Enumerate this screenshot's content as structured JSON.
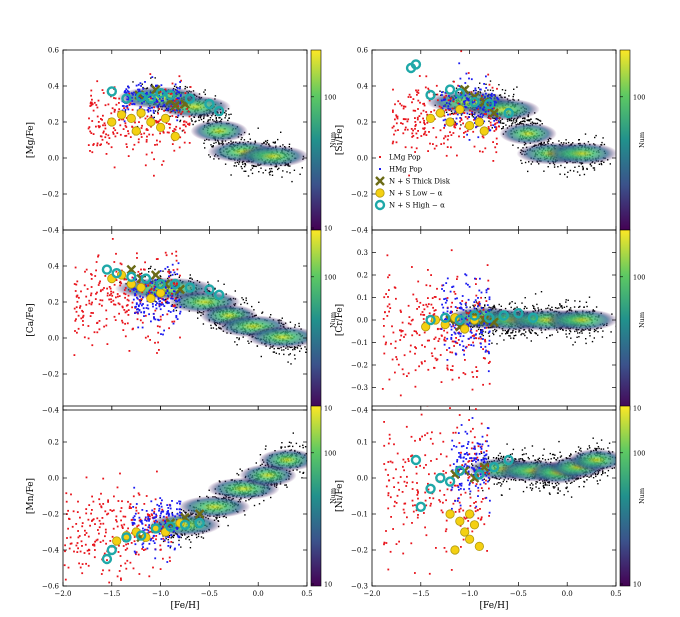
{
  "figure": {
    "colorbar_label": "Num",
    "xlabel": "[Fe/H]",
    "legend": [
      "LMg Pop",
      "HMg Pop",
      "N + S Thick Disk",
      "N + S Low − α",
      "N + S High − α"
    ],
    "colors": {
      "lmg": "#e8141c",
      "hmg": "#1b1bf0",
      "thick_disk": "#6b6b17",
      "low_alpha_fill": "#f4d012",
      "low_alpha_edge": "#b09a10",
      "high_alpha": "#1fa8a8",
      "background": "#000000",
      "viridis": [
        "#440154",
        "#3b528b",
        "#21918c",
        "#5ec962",
        "#fde725"
      ]
    }
  },
  "chart_data": [
    {
      "type": "scatter",
      "panel": "top-left",
      "ylabel": "[Mg/Fe]",
      "xlim": [
        -2.0,
        0.5
      ],
      "ylim": [
        -0.4,
        0.6
      ],
      "yticks": [
        "−0.4",
        "−0.2",
        "0.0",
        "0.2",
        "0.4",
        "0.6"
      ],
      "xticks": [],
      "colorbar": {
        "ticks": [
          "10",
          "100"
        ],
        "label": "Num"
      },
      "density_track": [
        [
          -1.2,
          0.35
        ],
        [
          -0.8,
          0.32
        ],
        [
          -0.5,
          0.25
        ],
        [
          -0.3,
          0.05
        ],
        [
          0.0,
          0.02
        ],
        [
          0.3,
          0.0
        ]
      ],
      "series": [
        {
          "name": "LMg Pop",
          "x_range": [
            -1.75,
            -0.7
          ],
          "y_center": 0.2,
          "y_spread": 0.1
        },
        {
          "name": "HMg Pop",
          "x_range": [
            -1.4,
            -0.8
          ],
          "y_center": 0.33,
          "y_spread": 0.05
        },
        {
          "name": "N + S Thick Disk",
          "x": [
            -1.22,
            -1.05,
            -0.9,
            -0.85,
            -0.75
          ],
          "y": [
            0.35,
            0.38,
            0.32,
            0.29,
            0.3
          ]
        },
        {
          "name": "N + S Low − α",
          "x": [
            -1.5,
            -1.4,
            -1.3,
            -1.25,
            -1.2,
            -1.1,
            -1.0,
            -0.95,
            -0.85
          ],
          "y": [
            0.2,
            0.24,
            0.22,
            0.15,
            0.25,
            0.2,
            0.17,
            0.22,
            0.12
          ]
        },
        {
          "name": "N + S High − α",
          "x": [
            -1.5,
            -1.35,
            -1.2,
            -1.1,
            -1.0,
            -0.9,
            -0.7,
            -0.5,
            -0.4
          ],
          "y": [
            0.37,
            0.33,
            0.34,
            0.33,
            0.36,
            0.35,
            0.33,
            0.3,
            0.26
          ]
        }
      ]
    },
    {
      "type": "scatter",
      "panel": "top-right",
      "ylabel": "[Si/Fe]",
      "xlim": [
        -2.0,
        0.5
      ],
      "ylim": [
        -0.4,
        0.6
      ],
      "yticks": [
        "−0.4",
        "−0.2",
        "0.0",
        "0.2",
        "0.4",
        "0.6"
      ],
      "xticks": [],
      "colorbar": {
        "ticks": [
          "100"
        ],
        "label": "Num"
      },
      "density_track": [
        [
          -1.2,
          0.3
        ],
        [
          -0.8,
          0.32
        ],
        [
          -0.5,
          0.22
        ],
        [
          -0.3,
          0.05
        ],
        [
          0.0,
          0.0
        ],
        [
          0.3,
          0.05
        ]
      ],
      "series": [
        {
          "name": "LMg Pop",
          "x_range": [
            -1.8,
            -0.7
          ],
          "y_center": 0.22,
          "y_spread": 0.1
        },
        {
          "name": "HMg Pop",
          "x_range": [
            -1.3,
            -0.7
          ],
          "y_center": 0.3,
          "y_spread": 0.07
        },
        {
          "name": "N + S Thick Disk",
          "x": [
            -1.05,
            -0.95,
            -0.85,
            -0.75
          ],
          "y": [
            0.38,
            0.34,
            0.31,
            0.25
          ]
        },
        {
          "name": "N + S Low − α",
          "x": [
            -1.4,
            -1.3,
            -1.2,
            -1.1,
            -1.0,
            -0.9,
            -0.85
          ],
          "y": [
            0.22,
            0.25,
            0.2,
            0.27,
            0.18,
            0.2,
            0.15
          ]
        },
        {
          "name": "N + S High − α",
          "x": [
            -1.6,
            -1.55,
            -1.4,
            -1.2,
            -1.1,
            -0.95,
            -0.8,
            -0.6
          ],
          "y": [
            0.5,
            0.52,
            0.35,
            0.38,
            0.36,
            0.31,
            0.3,
            0.25
          ]
        }
      ]
    },
    {
      "type": "scatter",
      "panel": "middle-left",
      "ylabel": "[Ca/Fe]",
      "xlim": [
        -2.0,
        0.5
      ],
      "ylim": [
        -0.4,
        0.6
      ],
      "yticks": [
        "−0.4",
        "−0.2",
        "0.0",
        "0.2",
        "0.4"
      ],
      "xticks": [],
      "colorbar": {
        "ticks": [
          "10",
          "100"
        ],
        "label": "Num"
      },
      "density_track": [
        [
          -1.2,
          0.3
        ],
        [
          -0.7,
          0.25
        ],
        [
          -0.4,
          0.15
        ],
        [
          -0.2,
          0.1
        ],
        [
          0.1,
          0.03
        ],
        [
          0.4,
          -0.02
        ]
      ],
      "series": [
        {
          "name": "LMg Pop",
          "x_range": [
            -1.9,
            -0.8
          ],
          "y_center": 0.22,
          "y_spread": 0.12
        },
        {
          "name": "HMg Pop",
          "x_range": [
            -1.3,
            -0.8
          ],
          "y_center": 0.22,
          "y_spread": 0.08
        },
        {
          "name": "N + S Thick Disk",
          "x": [
            -1.3,
            -1.2,
            -1.05,
            -0.95,
            -0.8
          ],
          "y": [
            0.38,
            0.33,
            0.35,
            0.3,
            0.27
          ]
        },
        {
          "name": "N + S Low − α",
          "x": [
            -1.5,
            -1.4,
            -1.3,
            -1.2,
            -1.1,
            -1.0
          ],
          "y": [
            0.33,
            0.35,
            0.3,
            0.28,
            0.22,
            0.25
          ]
        },
        {
          "name": "N + S High − α",
          "x": [
            -1.55,
            -1.45,
            -1.3,
            -1.15,
            -1.0,
            -0.85,
            -0.7,
            -0.5,
            -0.4
          ],
          "y": [
            0.38,
            0.36,
            0.34,
            0.33,
            0.3,
            0.3,
            0.28,
            0.27,
            0.24
          ]
        }
      ]
    },
    {
      "type": "scatter",
      "panel": "middle-right",
      "ylabel": "[Cr/Fe]",
      "xlim": [
        -2.0,
        0.5
      ],
      "ylim": [
        -0.4,
        0.4
      ],
      "yticks": [
        "−0.4",
        "−0.3",
        "−0.2",
        "−0.1",
        "0.0",
        "0.1",
        "0.2",
        "0.3"
      ],
      "xticks": [],
      "colorbar": {
        "ticks": [
          "10",
          "100"
        ],
        "label": "Num"
      },
      "density_track": [
        [
          -1.0,
          0.02
        ],
        [
          -0.7,
          0.0
        ],
        [
          -0.4,
          0.0
        ],
        [
          0.0,
          0.0
        ],
        [
          0.3,
          0.0
        ]
      ],
      "series": [
        {
          "name": "LMg Pop",
          "x_range": [
            -1.9,
            -0.8
          ],
          "y_center": -0.03,
          "y_spread": 0.12
        },
        {
          "name": "HMg Pop",
          "x_range": [
            -1.3,
            -0.8
          ],
          "y_center": 0.0,
          "y_spread": 0.08
        },
        {
          "name": "N + S Thick Disk",
          "x": [
            -1.2,
            -1.1,
            -0.95,
            -0.85,
            -0.75
          ],
          "y": [
            0.0,
            -0.03,
            0.02,
            0.0,
            -0.01
          ]
        },
        {
          "name": "N + S Low − α",
          "x": [
            -1.45,
            -1.35,
            -1.25,
            -1.15,
            -1.05,
            -0.95
          ],
          "y": [
            -0.03,
            0.0,
            -0.02,
            0.01,
            -0.04,
            0.0
          ]
        },
        {
          "name": "N + S High − α",
          "x": [
            -1.4,
            -1.25,
            -1.1,
            -0.95,
            -0.8,
            -0.65,
            -0.5,
            -0.35
          ],
          "y": [
            0.0,
            0.01,
            0.0,
            0.02,
            0.01,
            0.02,
            0.03,
            0.01
          ]
        }
      ]
    },
    {
      "type": "scatter",
      "panel": "bottom-left",
      "ylabel": "[Mn/Fe]",
      "xlabel": "[Fe/H]",
      "xlim": [
        -2.0,
        0.5
      ],
      "ylim": [
        -0.6,
        0.4
      ],
      "yticks": [
        "−0.6",
        "−0.4",
        "−0.2",
        "0.0",
        "0.2"
      ],
      "xticks": [
        "−2.0",
        "−1.5",
        "−1.0",
        "−0.5",
        "0.0",
        "0.5"
      ],
      "colorbar": {
        "ticks": [
          "10",
          "100"
        ],
        "label": "Num"
      },
      "density_track": [
        [
          -0.9,
          -0.3
        ],
        [
          -0.6,
          -0.22
        ],
        [
          -0.3,
          -0.1
        ],
        [
          0.0,
          -0.02
        ],
        [
          0.2,
          0.05
        ],
        [
          0.4,
          0.15
        ]
      ],
      "series": [
        {
          "name": "LMg Pop",
          "x_range": [
            -2.0,
            -0.9
          ],
          "y_center": -0.3,
          "y_spread": 0.12
        },
        {
          "name": "HMg Pop",
          "x_range": [
            -1.3,
            -0.8
          ],
          "y_center": -0.25,
          "y_spread": 0.08
        },
        {
          "name": "N + S Thick Disk",
          "x": [
            -1.2,
            -1.05,
            -0.9,
            -0.75,
            -0.6
          ],
          "y": [
            -0.33,
            -0.28,
            -0.25,
            -0.22,
            -0.2
          ]
        },
        {
          "name": "N + S Low − α",
          "x": [
            -1.45,
            -1.35,
            -1.25,
            -1.15,
            -1.05,
            -0.95,
            -0.8
          ],
          "y": [
            -0.35,
            -0.32,
            -0.3,
            -0.33,
            -0.28,
            -0.3,
            -0.25
          ]
        },
        {
          "name": "N + S High − α",
          "x": [
            -1.55,
            -1.5,
            -1.35,
            -1.2,
            -1.05,
            -0.9,
            -0.75,
            -0.6
          ],
          "y": [
            -0.45,
            -0.4,
            -0.33,
            -0.32,
            -0.28,
            -0.27,
            -0.26,
            -0.25
          ]
        }
      ]
    },
    {
      "type": "scatter",
      "panel": "bottom-right",
      "ylabel": "[Ni/Fe]",
      "xlabel": "[Fe/H]",
      "xlim": [
        -2.0,
        0.5
      ],
      "ylim": [
        -0.3,
        0.2
      ],
      "yticks": [
        "−0.3",
        "−0.2",
        "−0.1",
        "0.0",
        "0.1"
      ],
      "xticks": [
        "−2.0",
        "−1.5",
        "−1.0",
        "−0.5",
        "0.0",
        "0.5"
      ],
      "colorbar": {
        "ticks": [
          "10",
          "100"
        ],
        "label": "Num"
      },
      "density_track": [
        [
          -0.8,
          0.02
        ],
        [
          -0.5,
          0.03
        ],
        [
          -0.2,
          0.01
        ],
        [
          0.0,
          0.02
        ],
        [
          0.2,
          0.04
        ],
        [
          0.4,
          0.06
        ]
      ],
      "series": [
        {
          "name": "LMg Pop",
          "x_range": [
            -1.9,
            -0.8
          ],
          "y_center": -0.02,
          "y_spread": 0.1
        },
        {
          "name": "HMg Pop",
          "x_range": [
            -1.2,
            -0.8
          ],
          "y_center": 0.03,
          "y_spread": 0.05
        },
        {
          "name": "N + S Thick Disk",
          "x": [
            -1.15,
            -1.05,
            -0.95,
            -0.85
          ],
          "y": [
            0.01,
            0.02,
            0.0,
            0.03
          ]
        },
        {
          "name": "N + S Low − α",
          "x": [
            -1.2,
            -1.1,
            -1.05,
            -1.0,
            -0.95,
            -0.9,
            -1.15,
            -1.0
          ],
          "y": [
            -0.1,
            -0.12,
            -0.15,
            -0.17,
            -0.13,
            -0.19,
            -0.2,
            -0.1
          ]
        },
        {
          "name": "N + S High − α",
          "x": [
            -1.55,
            -1.5,
            -1.4,
            -1.3,
            -1.2,
            -1.1,
            -0.9,
            -0.75,
            -0.6
          ],
          "y": [
            0.05,
            -0.08,
            -0.03,
            0.0,
            -0.01,
            0.02,
            0.01,
            0.03,
            0.05
          ]
        }
      ]
    }
  ]
}
